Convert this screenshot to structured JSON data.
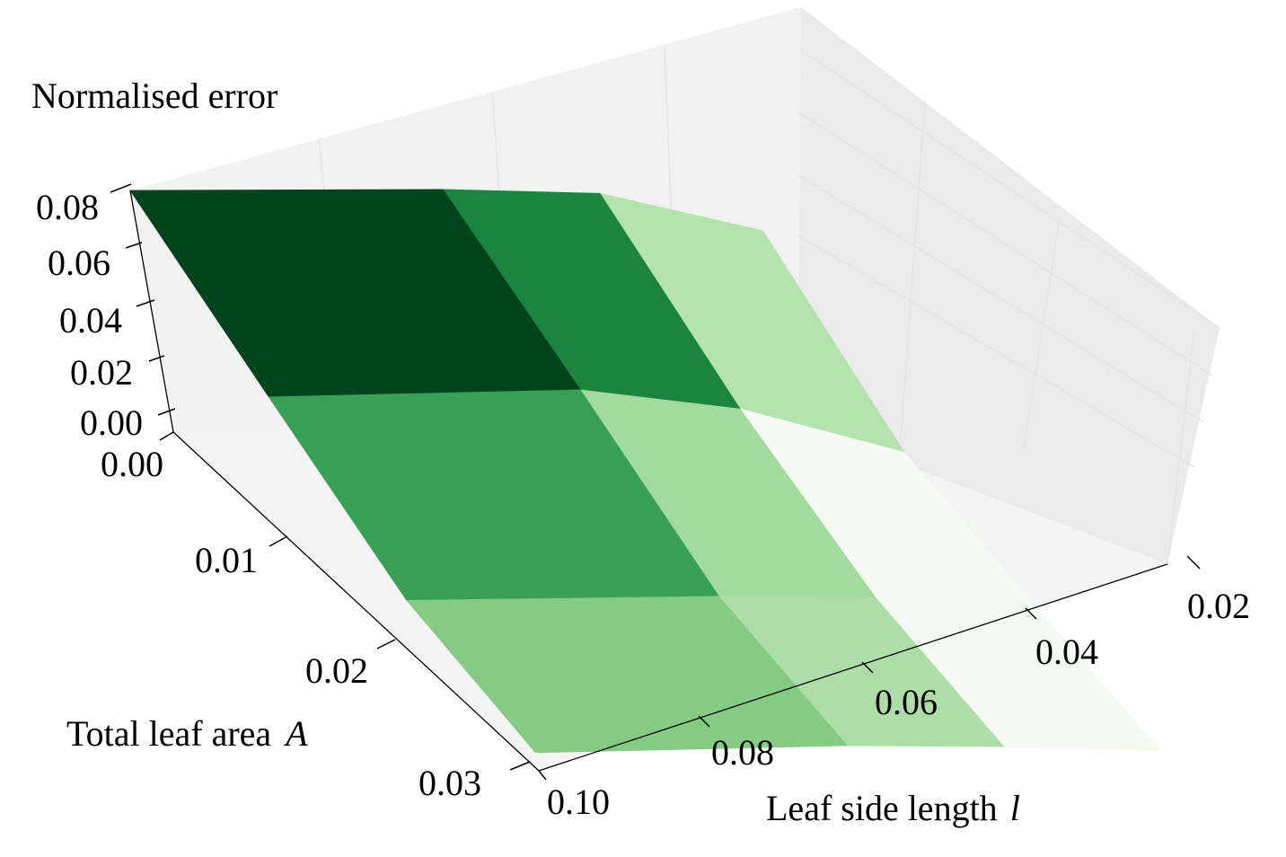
{
  "chart_data": {
    "type": "surface3d",
    "title": "",
    "colormap": "Greens",
    "zlabel": "Normalised error",
    "ylabel": "Total leaf area",
    "ylabel_symbol": "A",
    "xlabel": "Leaf side length",
    "xlabel_symbol": "l",
    "x_ticks": [
      "0.10",
      "0.08",
      "0.06",
      "0.04",
      "0.02"
    ],
    "y_ticks": [
      "0.00",
      "0.01",
      "0.02",
      "0.03"
    ],
    "z_ticks": [
      "0.00",
      "0.02",
      "0.04",
      "0.06",
      "0.08"
    ],
    "x": [
      0.1,
      0.06,
      0.04,
      0.02
    ],
    "y": [
      0.0,
      0.01,
      0.02,
      0.03
    ],
    "z": [
      [
        0.08,
        0.079,
        0.077,
        0.064
      ],
      [
        0.049,
        0.05,
        0.043,
        0.028
      ],
      [
        0.019,
        0.019,
        0.018,
        0.015
      ],
      [
        0.006,
        0.007,
        0.006,
        0.004
      ]
    ],
    "face_colors": [
      [
        "#00441b",
        "#37a055",
        "#84cb83"
      ],
      [
        "#1b8540",
        "#a3da9d",
        "#aedea7"
      ],
      [
        "#b6e2b0",
        "#f5fbf2",
        "#f5fbf2"
      ]
    ],
    "grid": true
  }
}
